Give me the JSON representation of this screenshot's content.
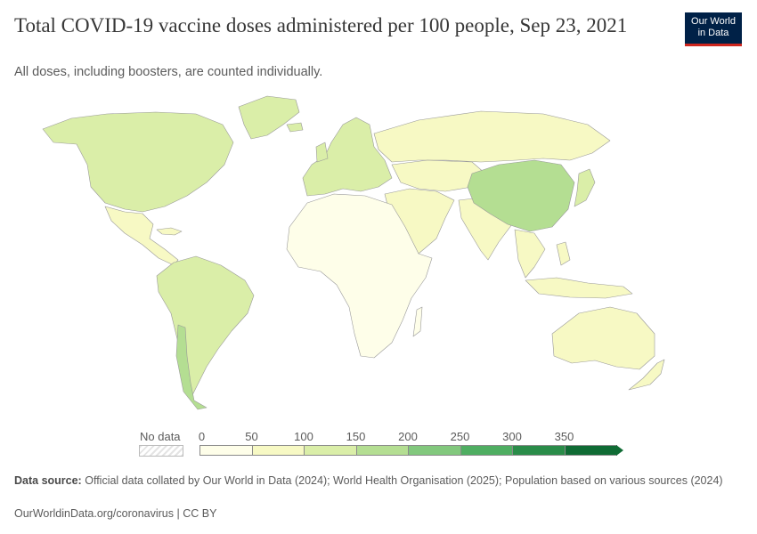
{
  "header": {
    "title": "Total COVID-19 vaccine doses administered per 100 people, Sep 23, 2021",
    "subtitle": "All doses, including boosters, are counted individually."
  },
  "logo": {
    "line1": "Our World",
    "line2": "in Data",
    "bg": "#002147",
    "accent": "#ce261e"
  },
  "legend": {
    "no_data_label": "No data",
    "ticks": [
      "0",
      "50",
      "100",
      "150",
      "200",
      "250",
      "300",
      "350"
    ],
    "colors": [
      "#fefee9",
      "#f7f9c4",
      "#daeea8",
      "#b4de92",
      "#82c87d",
      "#4fae62",
      "#2a8c49",
      "#0f6b34"
    ]
  },
  "footer": {
    "source_label": "Data source:",
    "source_text": "Official data collated by Our World in Data (2024); World Health Organisation (2025); Population based on various sources (2024)",
    "url_license": "OurWorldinData.org/coronavirus | CC BY"
  },
  "map_data": {
    "regions": [
      {
        "name": "North America",
        "bin": 2
      },
      {
        "name": "Central America",
        "bin": 1
      },
      {
        "name": "South America",
        "bin": 2
      },
      {
        "name": "Chile",
        "bin": 3
      },
      {
        "name": "Europe",
        "bin": 2
      },
      {
        "name": "Africa",
        "bin": 0
      },
      {
        "name": "Middle East",
        "bin": 1
      },
      {
        "name": "Russia",
        "bin": 1
      },
      {
        "name": "Central Asia",
        "bin": 1
      },
      {
        "name": "India",
        "bin": 1
      },
      {
        "name": "China",
        "bin": 3
      },
      {
        "name": "Japan",
        "bin": 2
      },
      {
        "name": "Southeast Asia",
        "bin": 1
      },
      {
        "name": "Australia",
        "bin": 1
      },
      {
        "name": "New Zealand",
        "bin": 1
      },
      {
        "name": "Greenland",
        "bin": 2
      }
    ]
  }
}
